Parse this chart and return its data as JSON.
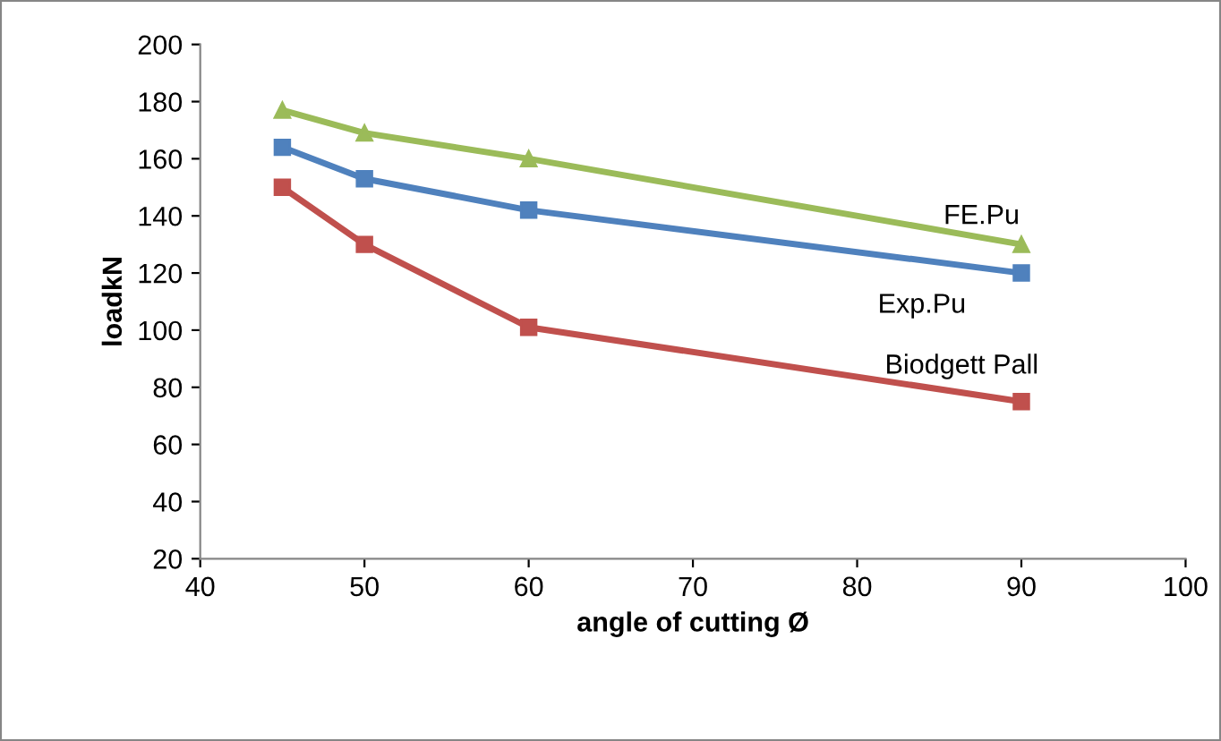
{
  "chart_data": {
    "type": "line",
    "xlabel": "angle of cutting Ø",
    "ylabel": "loadkN",
    "x": [
      45,
      50,
      60,
      90
    ],
    "series": [
      {
        "name": "FE.Pu",
        "color": "#9bbb59",
        "marker": "triangle",
        "values": [
          177,
          169,
          160,
          130
        ]
      },
      {
        "name": "Exp.Pu",
        "color": "#4f81bd",
        "marker": "square",
        "values": [
          164,
          153,
          142,
          120
        ]
      },
      {
        "name": "Biodgett Pall",
        "color": "#c0504d",
        "marker": "square",
        "values": [
          150,
          130,
          101,
          75
        ]
      }
    ],
    "xlim": [
      40,
      100
    ],
    "xticks": [
      40,
      50,
      60,
      70,
      80,
      90,
      100
    ],
    "ylim": [
      20,
      200
    ],
    "yticks": [
      20,
      40,
      60,
      80,
      100,
      120,
      140,
      160,
      180,
      200
    ],
    "grid": false,
    "legend": false,
    "line_style": "solid"
  }
}
